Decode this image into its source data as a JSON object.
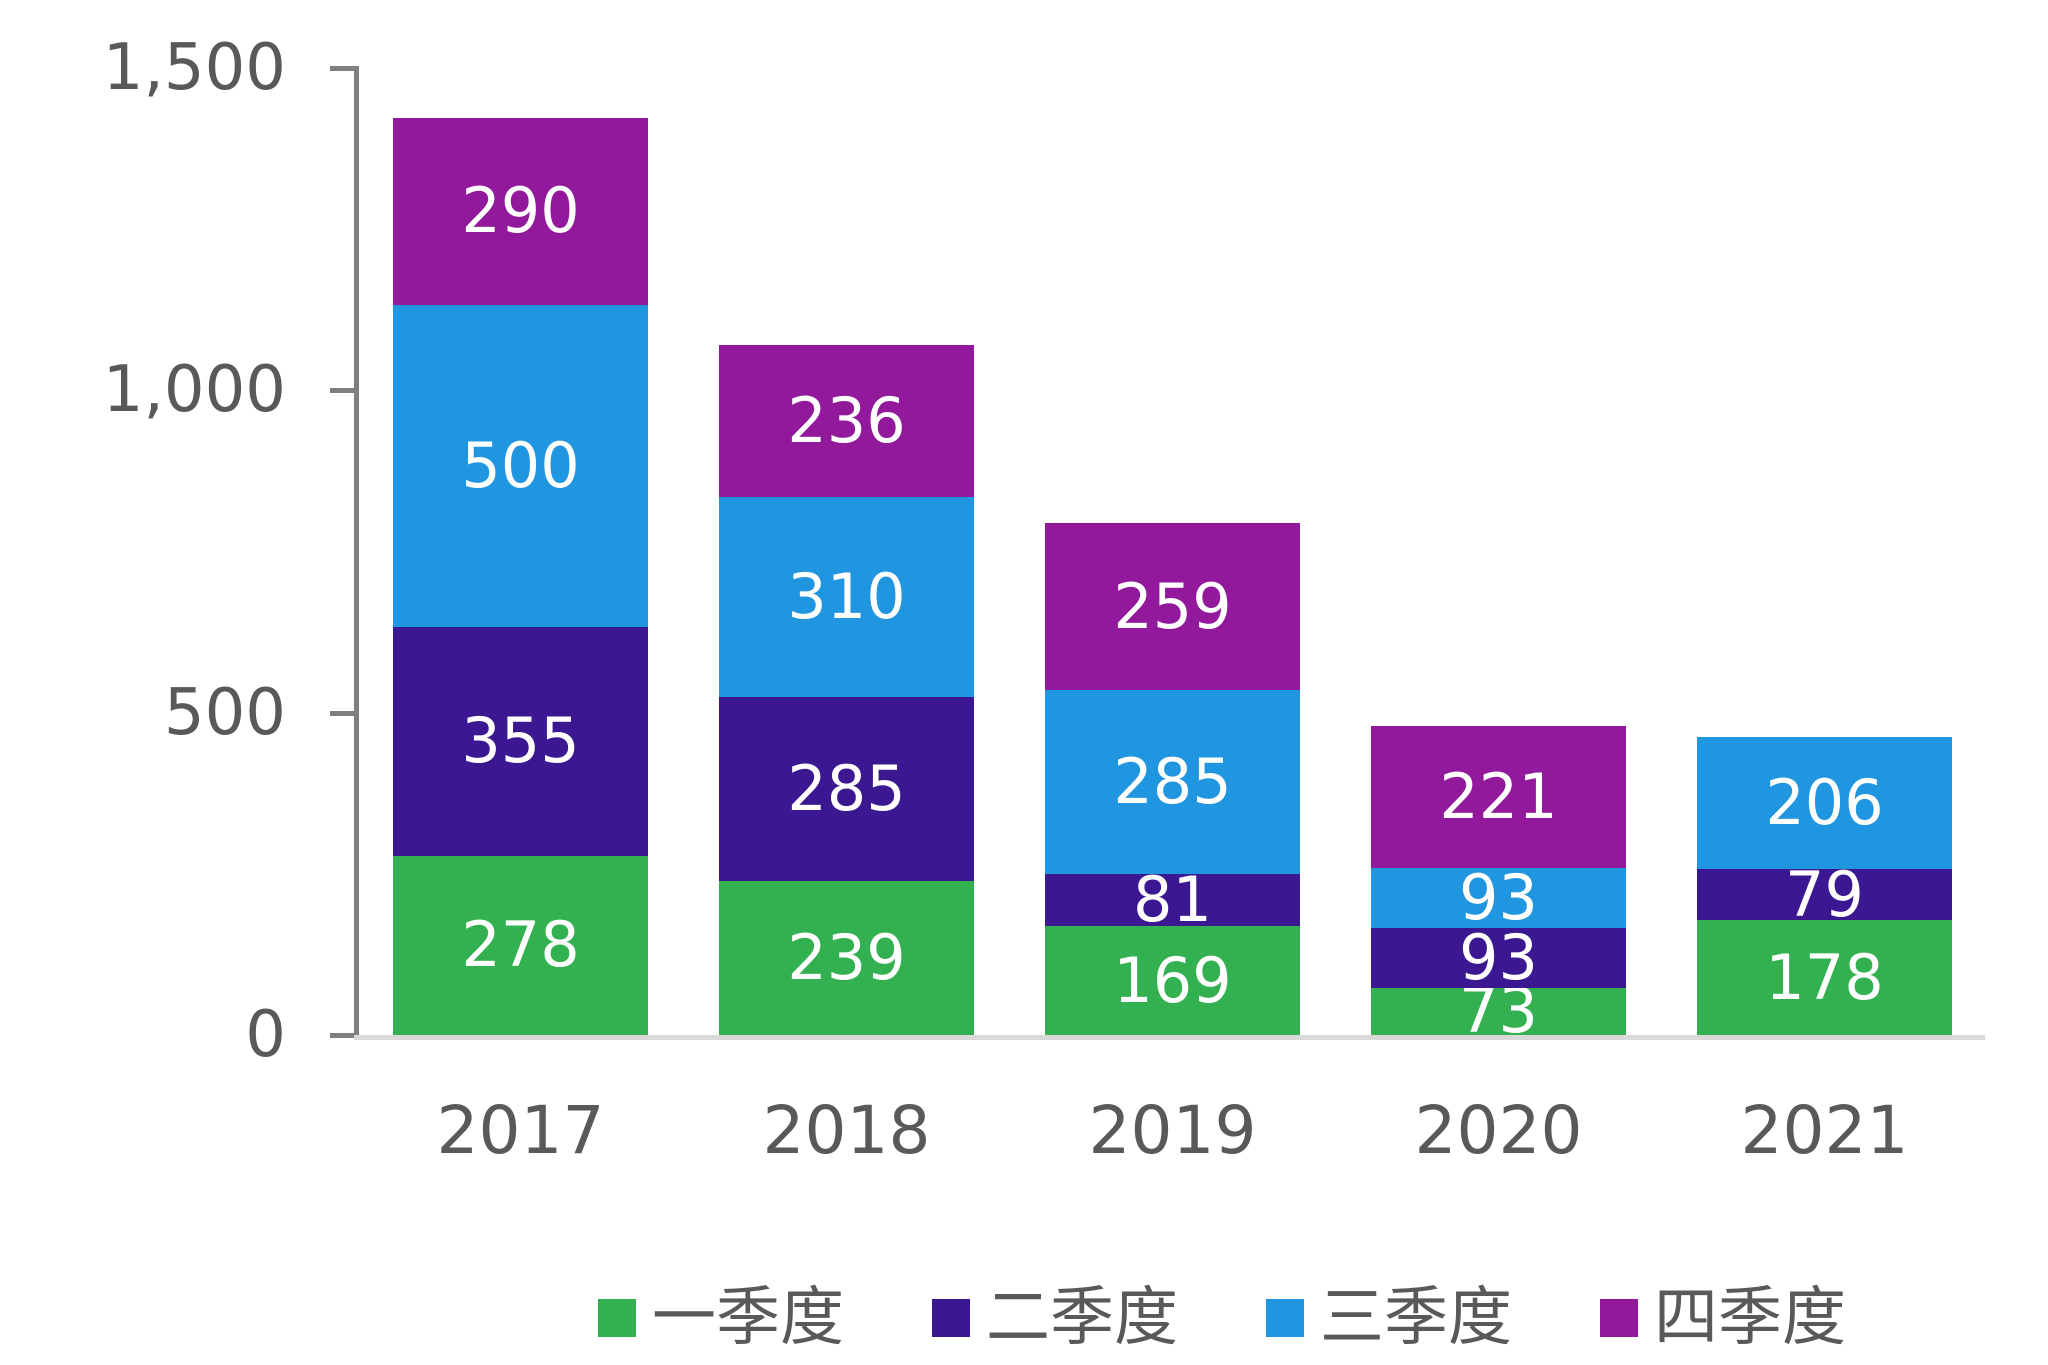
{
  "chart_data": {
    "type": "bar",
    "stacked": true,
    "title": "",
    "xlabel": "",
    "ylabel": "",
    "categories": [
      "2017",
      "2018",
      "2019",
      "2020",
      "2021"
    ],
    "series": [
      {
        "name": "一季度",
        "color": "#33B150",
        "values": [
          278,
          239,
          169,
          73,
          178
        ]
      },
      {
        "name": "二季度",
        "color": "#3B1791",
        "values": [
          355,
          285,
          81,
          93,
          79
        ]
      },
      {
        "name": "三季度",
        "color": "#2196E0",
        "values": [
          500,
          310,
          285,
          93,
          206
        ]
      },
      {
        "name": "四季度",
        "color": "#92189C",
        "values": [
          290,
          236,
          259,
          221,
          null
        ]
      }
    ],
    "totals": [
      1423,
      1070,
      794,
      480,
      463
    ],
    "y_axis": {
      "min": 0,
      "max": 1500,
      "ticks": [
        0,
        500,
        1000,
        1500
      ],
      "tick_labels": [
        "0",
        "500",
        "1,000",
        "1,500"
      ]
    },
    "grid": false,
    "legend_position": "bottom",
    "value_labels": "inside, white"
  },
  "colors": {
    "background": "#FFFFFF",
    "axis_line": "#808080",
    "baseline": "#D9D9D9",
    "axis_text": "#595959",
    "legend_text": "#595959",
    "value_label_text": "#FFFFFF"
  }
}
